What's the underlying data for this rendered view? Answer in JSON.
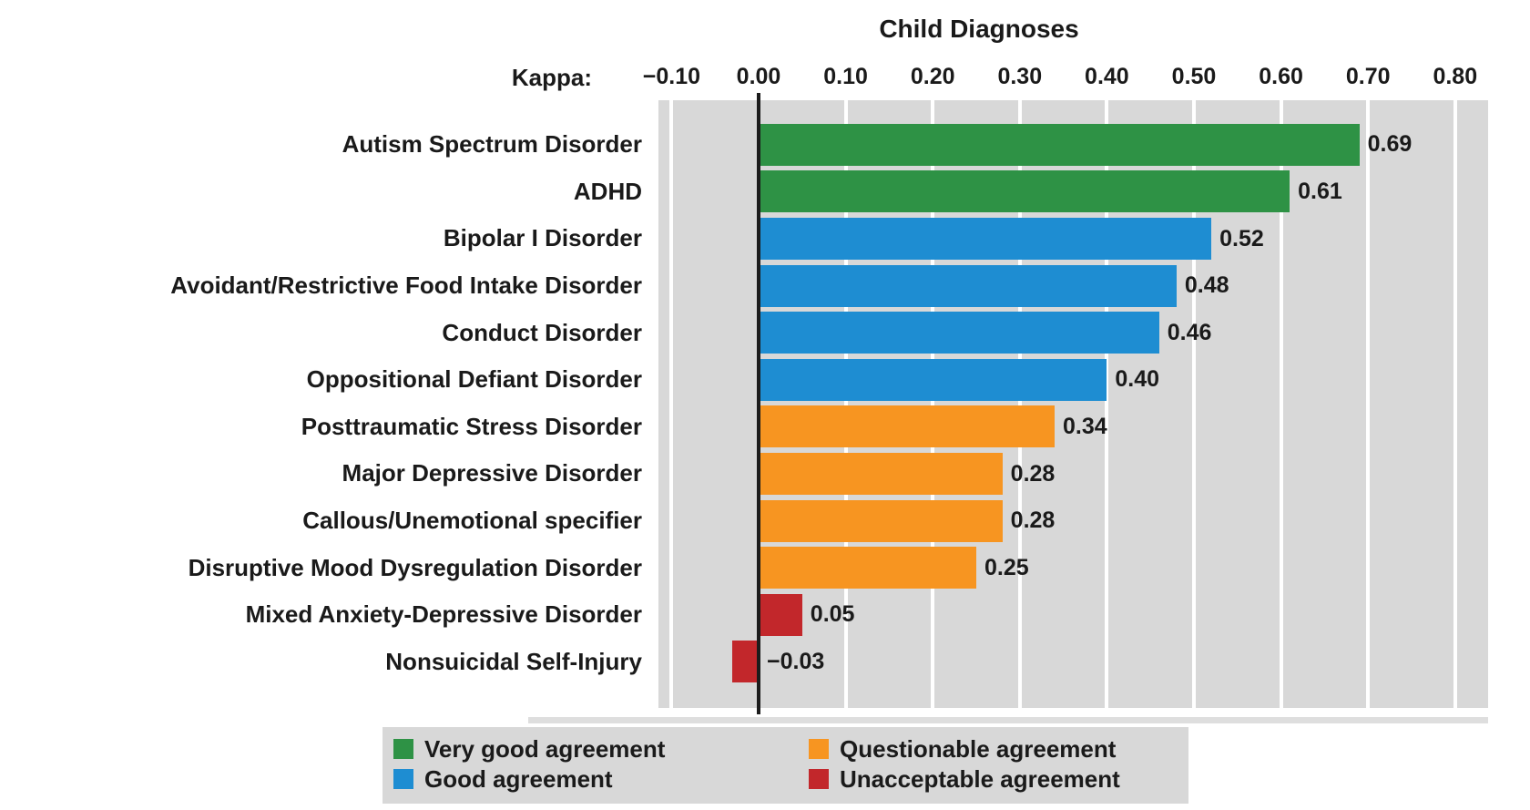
{
  "header": {
    "title": "Child Diagnoses",
    "axis_label": "Kappa:"
  },
  "chart_data": {
    "type": "bar",
    "orientation": "horizontal",
    "title": "Child Diagnoses",
    "xlabel": "Kappa",
    "xlim": [
      -0.115,
      0.838
    ],
    "grid": true,
    "legend_position": "bottom",
    "xticks": [
      -0.1,
      0.0,
      0.1,
      0.2,
      0.3,
      0.4,
      0.5,
      0.6,
      0.7,
      0.8
    ],
    "xtick_labels": [
      "−0.10",
      "0.00",
      "0.10",
      "0.20",
      "0.30",
      "0.40",
      "0.50",
      "0.60",
      "0.70",
      "0.80"
    ],
    "categories": [
      "Autism Spectrum Disorder",
      "ADHD",
      "Bipolar I Disorder",
      "Avoidant/Restrictive Food Intake Disorder",
      "Conduct Disorder",
      "Oppositional Defiant Disorder",
      "Posttraumatic Stress Disorder",
      "Major Depressive Disorder",
      "Callous/Unemotional specifier",
      "Disruptive Mood Dysregulation Disorder",
      "Mixed Anxiety-Depressive Disorder",
      "Nonsuicidal Self-Injury"
    ],
    "values": [
      0.69,
      0.61,
      0.52,
      0.48,
      0.46,
      0.4,
      0.34,
      0.28,
      0.28,
      0.25,
      0.05,
      -0.03
    ],
    "value_labels": [
      "0.69",
      "0.61",
      "0.52",
      "0.48",
      "0.46",
      "0.40",
      "0.34",
      "0.28",
      "0.28",
      "0.25",
      "0.05",
      "−0.03"
    ],
    "groups": [
      "very_good",
      "very_good",
      "good",
      "good",
      "good",
      "good",
      "questionable",
      "questionable",
      "questionable",
      "questionable",
      "unacceptable",
      "unacceptable"
    ],
    "group_colors": {
      "very_good": "#2e9245",
      "good": "#1e8dd2",
      "questionable": "#f79521",
      "unacceptable": "#c2272b"
    },
    "legend": [
      {
        "label": "Very good agreement",
        "group": "very_good",
        "color": "#2e9245"
      },
      {
        "label": "Good agreement",
        "group": "good",
        "color": "#1e8dd2"
      },
      {
        "label": "Questionable agreement",
        "group": "questionable",
        "color": "#f79521"
      },
      {
        "label": "Unacceptable agreement",
        "group": "unacceptable",
        "color": "#c2272b"
      }
    ],
    "style_colors": {
      "panel_background": "#d8d8d8",
      "gridline": "#ffffff",
      "zero_axis": "#1c1c1c",
      "text": "#1a1a1a",
      "page_background": "#ffffff"
    }
  }
}
